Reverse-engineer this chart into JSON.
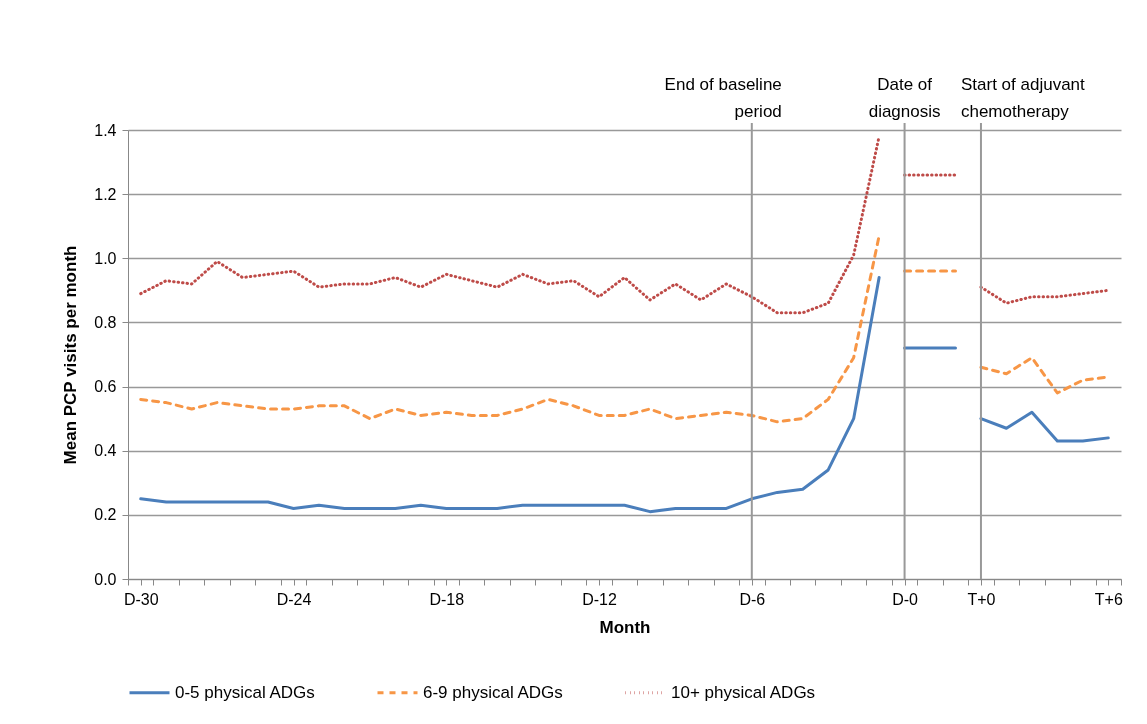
{
  "chart_data": {
    "type": "line",
    "xlabel": "Month",
    "ylabel": "Mean PCP visits per month",
    "categories": [
      "D-30",
      null,
      null,
      null,
      null,
      null,
      "D-24",
      null,
      null,
      null,
      null,
      null,
      "D-18",
      null,
      null,
      null,
      null,
      null,
      "D-12",
      null,
      null,
      null,
      null,
      null,
      "D-6",
      null,
      null,
      null,
      null,
      null,
      "D-0",
      null,
      null,
      "T+0",
      null,
      null,
      null,
      null,
      "T+6"
    ],
    "series": [
      {
        "name": "0-5 physical ADGs",
        "color": "#4a7ebb",
        "line_style": "solid",
        "values": [
          0.25,
          0.24,
          0.24,
          0.24,
          0.24,
          0.24,
          0.22,
          0.23,
          0.22,
          0.22,
          0.22,
          0.23,
          0.22,
          0.22,
          0.22,
          0.23,
          0.23,
          0.23,
          0.23,
          0.23,
          0.21,
          0.22,
          0.22,
          0.22,
          0.25,
          0.27,
          0.28,
          0.34,
          0.5,
          0.94,
          null,
          null,
          null,
          null,
          null,
          null,
          null,
          null,
          null
        ]
      },
      {
        "color": "#4a7ebb",
        "line_style": "solid",
        "values": [
          null,
          null,
          null,
          null,
          null,
          null,
          null,
          null,
          null,
          null,
          null,
          null,
          null,
          null,
          null,
          null,
          null,
          null,
          null,
          null,
          null,
          null,
          null,
          null,
          null,
          null,
          null,
          null,
          null,
          null,
          0.72,
          0.72,
          0.72,
          null,
          null,
          null,
          null,
          null,
          null
        ]
      },
      {
        "color": "#4a7ebb",
        "line_style": "solid",
        "values": [
          null,
          null,
          null,
          null,
          null,
          null,
          null,
          null,
          null,
          null,
          null,
          null,
          null,
          null,
          null,
          null,
          null,
          null,
          null,
          null,
          null,
          null,
          null,
          null,
          null,
          null,
          null,
          null,
          null,
          null,
          null,
          null,
          null,
          0.5,
          0.47,
          0.52,
          0.43,
          0.43,
          0.44
        ]
      },
      {
        "name": "6-9 physical ADGs",
        "color": "#f79646",
        "line_style": "dashed",
        "values": [
          0.56,
          0.55,
          0.53,
          0.55,
          0.54,
          0.53,
          0.53,
          0.54,
          0.54,
          0.5,
          0.53,
          0.51,
          0.52,
          0.51,
          0.51,
          0.53,
          0.56,
          0.54,
          0.51,
          0.51,
          0.53,
          0.5,
          0.51,
          0.52,
          0.51,
          0.49,
          0.5,
          0.56,
          0.69,
          1.07,
          null,
          null,
          null,
          null,
          null,
          null,
          null,
          null,
          null
        ]
      },
      {
        "color": "#f79646",
        "line_style": "dashed",
        "values": [
          null,
          null,
          null,
          null,
          null,
          null,
          null,
          null,
          null,
          null,
          null,
          null,
          null,
          null,
          null,
          null,
          null,
          null,
          null,
          null,
          null,
          null,
          null,
          null,
          null,
          null,
          null,
          null,
          null,
          null,
          0.96,
          0.96,
          0.96,
          null,
          null,
          null,
          null,
          null,
          null
        ]
      },
      {
        "color": "#f79646",
        "line_style": "dashed",
        "values": [
          null,
          null,
          null,
          null,
          null,
          null,
          null,
          null,
          null,
          null,
          null,
          null,
          null,
          null,
          null,
          null,
          null,
          null,
          null,
          null,
          null,
          null,
          null,
          null,
          null,
          null,
          null,
          null,
          null,
          null,
          null,
          null,
          null,
          0.66,
          0.64,
          0.69,
          0.58,
          0.62,
          0.63
        ]
      },
      {
        "name": "10+ physical ADGs",
        "color": "#be4b48",
        "line_style": "dotted",
        "values": [
          0.89,
          0.93,
          0.92,
          0.99,
          0.94,
          0.95,
          0.96,
          0.91,
          0.92,
          0.92,
          0.94,
          0.91,
          0.95,
          0.93,
          0.91,
          0.95,
          0.92,
          0.93,
          0.88,
          0.94,
          0.87,
          0.92,
          0.87,
          0.92,
          0.88,
          0.83,
          0.83,
          0.86,
          1.01,
          1.38,
          null,
          null,
          null,
          null,
          null,
          null,
          null,
          null,
          null
        ]
      },
      {
        "color": "#be4b48",
        "line_style": "dotted",
        "values": [
          null,
          null,
          null,
          null,
          null,
          null,
          null,
          null,
          null,
          null,
          null,
          null,
          null,
          null,
          null,
          null,
          null,
          null,
          null,
          null,
          null,
          null,
          null,
          null,
          null,
          null,
          null,
          null,
          null,
          null,
          1.26,
          1.26,
          1.26,
          null,
          null,
          null,
          null,
          null,
          null
        ]
      },
      {
        "color": "#be4b48",
        "line_style": "dotted",
        "values": [
          null,
          null,
          null,
          null,
          null,
          null,
          null,
          null,
          null,
          null,
          null,
          null,
          null,
          null,
          null,
          null,
          null,
          null,
          null,
          null,
          null,
          null,
          null,
          null,
          null,
          null,
          null,
          null,
          null,
          null,
          null,
          null,
          null,
          0.91,
          0.86,
          0.88,
          0.88,
          0.89,
          0.9
        ]
      }
    ],
    "ylim": [
      0,
      1.4
    ],
    "yticks": [
      {
        "value": 0,
        "label": "0.0"
      },
      {
        "value": 0.2,
        "label": "0.2"
      },
      {
        "value": 0.4,
        "label": "0.4"
      },
      {
        "value": 0.6,
        "label": "0.6"
      },
      {
        "value": 0.8,
        "label": "0.8"
      },
      {
        "value": 1,
        "label": "1.0"
      },
      {
        "value": 1.2,
        "label": "1.2"
      },
      {
        "value": 1.4,
        "label": "1.4"
      }
    ],
    "ref_lines": [
      {
        "axis": "x",
        "value": "D-6",
        "label": "End of baseline period"
      },
      {
        "axis": "x",
        "value": "D-0",
        "label": "Date of diagnosis"
      },
      {
        "axis": "x",
        "value": "T+0",
        "label": "Start of adjuvant chemotherapy"
      }
    ],
    "grid": "y",
    "legend": "bottom"
  }
}
